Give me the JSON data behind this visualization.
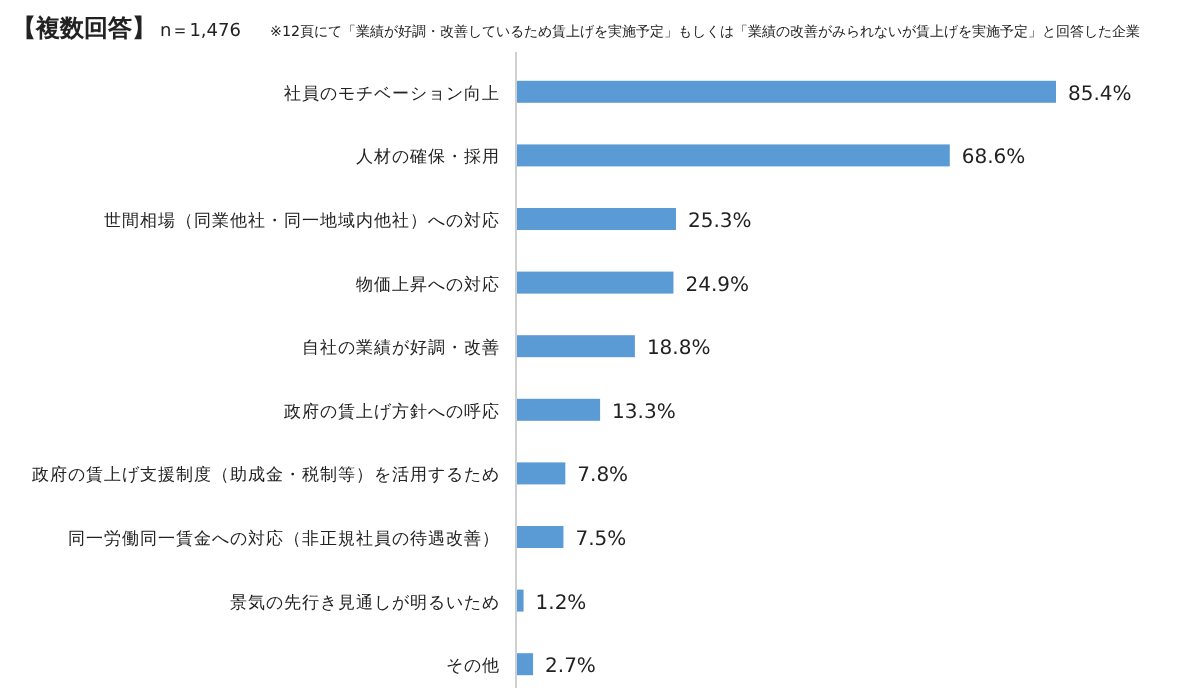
{
  "chart_data": {
    "type": "bar",
    "orientation": "horizontal",
    "title": "【複数回答】",
    "subtitle": "n＝1,476",
    "annotations": [
      "※12頁にて「業績が好調・改善しているため賃上げを実施予定」もしくは「業績の改善がみられないが賃上げを実施予定」と回答した企業"
    ],
    "categories": [
      "社員のモチベーション向上",
      "人材の確保・採用",
      "世間相場（同業他社・同一地域内他社）への対応",
      "物価上昇への対応",
      "自社の業績が好調・改善",
      "政府の賃上げ方針への呼応",
      "政府の賃上げ支援制度（助成金・税制等）を活用するため",
      "同一労働同一賃金への対応（非正規社員の待遇改善）",
      "景気の先行き見通しが明るいため",
      "その他"
    ],
    "values": [
      85.4,
      68.6,
      25.3,
      24.9,
      18.8,
      13.3,
      7.8,
      7.5,
      1.2,
      2.7
    ],
    "value_labels": [
      "85.4%",
      "68.6%",
      "25.3%",
      "24.9%",
      "18.8%",
      "13.3%",
      "7.8%",
      "7.5%",
      "1.2%",
      "2.7%"
    ],
    "color": "#5b9bd5"
  }
}
